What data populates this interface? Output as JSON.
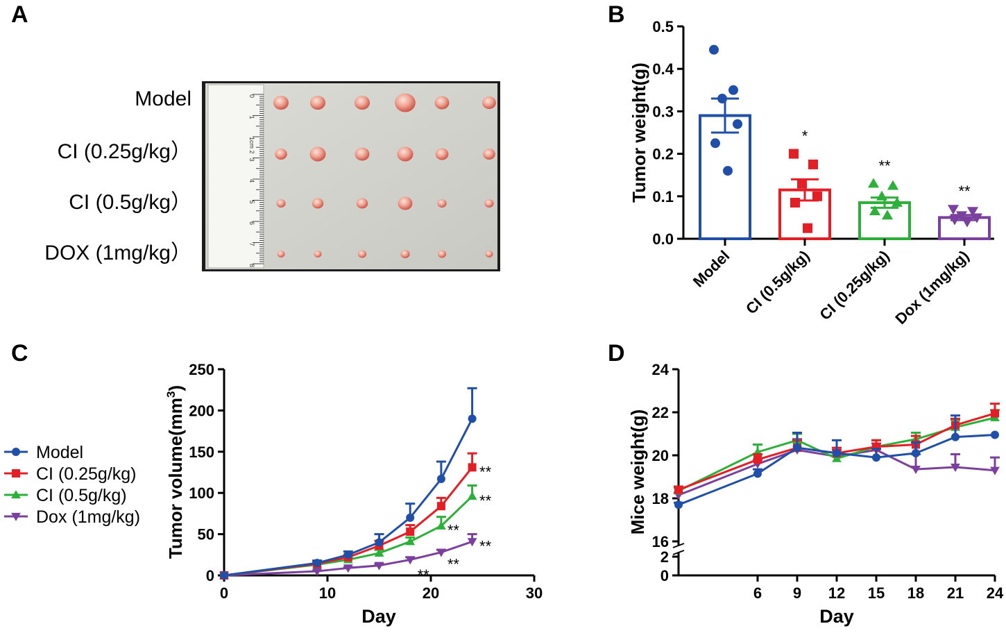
{
  "panels": {
    "a": {
      "letter": "A"
    },
    "b": {
      "letter": "B"
    },
    "c": {
      "letter": "C"
    },
    "d": {
      "letter": "D"
    }
  },
  "colors": {
    "model": "#1f4fa8",
    "ci025": "#e31e24",
    "ci05": "#2db039",
    "dox": "#7b3f9e",
    "axis": "#000000"
  },
  "photo": {
    "row_labels": [
      "Model",
      "CI (0.25g/kg）",
      "CI (0.5g/kg）",
      "DOX (1mg/kg）"
    ],
    "ruler_ticks": [
      "0",
      "1",
      "1cm 2",
      "3",
      "4",
      "5",
      "6",
      "7",
      "8"
    ],
    "tumor_sizes": [
      [
        1.0,
        1.0,
        1.0,
        1.35,
        0.95,
        0.9
      ],
      [
        0.8,
        1.05,
        0.95,
        1.05,
        0.85,
        0.8
      ],
      [
        0.6,
        0.75,
        0.75,
        0.95,
        0.6,
        0.6
      ],
      [
        0.5,
        0.5,
        0.55,
        0.6,
        0.55,
        0.5
      ]
    ]
  },
  "chart_data": [
    {
      "panel": "B",
      "type": "bar",
      "title": "",
      "xlabel": "",
      "ylabel": "Tumor weight(g)",
      "ylim": [
        0,
        0.5
      ],
      "yticks": [
        "0.0",
        "0.1",
        "0.2",
        "0.3",
        "0.4",
        "0.5"
      ],
      "categories": [
        "Model",
        "CI (0.5g/kg)",
        "CI (0.25g/kg)",
        "Dox (1mg/kg)"
      ],
      "values": [
        0.29,
        0.115,
        0.085,
        0.05
      ],
      "sem": [
        0.04,
        0.025,
        0.012,
        0.006
      ],
      "significance": [
        "",
        "*",
        "**",
        "**"
      ],
      "points": [
        [
          0.445,
          0.35,
          0.33,
          0.27,
          0.225,
          0.16
        ],
        [
          0.2,
          0.175,
          0.13,
          0.1,
          0.085,
          0.025
        ],
        [
          0.13,
          0.125,
          0.1,
          0.085,
          0.065,
          0.055
        ],
        [
          0.07,
          0.065,
          0.055,
          0.05,
          0.045,
          0.04
        ]
      ],
      "markers": [
        "circle",
        "square",
        "triangle-up",
        "triangle-down"
      ]
    },
    {
      "panel": "C",
      "type": "line",
      "xlabel": "Day",
      "ylabel": "Tumor volume(mm",
      "ylabel_sup": "3",
      "ylabel_end": ")",
      "xlim": [
        0,
        30
      ],
      "ylim": [
        0,
        250
      ],
      "xticks": [
        "0",
        "10",
        "20",
        "30"
      ],
      "yticks": [
        "0",
        "50",
        "100",
        "150",
        "200",
        "250"
      ],
      "x": [
        0,
        9,
        12,
        15,
        18,
        21,
        24
      ],
      "series": [
        {
          "name": "Model",
          "marker": "circle",
          "values": [
            0,
            15,
            25,
            40,
            70,
            117,
            190
          ],
          "sem": [
            0,
            3,
            4,
            10,
            17,
            21,
            37
          ]
        },
        {
          "name": "CI (0.25g/kg)",
          "marker": "square",
          "values": [
            0,
            14,
            22,
            36,
            53,
            84,
            131
          ],
          "sem": [
            0,
            2,
            3,
            6,
            8,
            10,
            17
          ]
        },
        {
          "name": "CI (0.5g/kg)",
          "marker": "triangle-up",
          "values": [
            0,
            13,
            19,
            27,
            41,
            60,
            96
          ],
          "sem": [
            0,
            2,
            2,
            4,
            5,
            11,
            13
          ]
        },
        {
          "name": "Dox (1mg/kg)",
          "marker": "triangle-down",
          "values": [
            0,
            5,
            9,
            12,
            19,
            28,
            41
          ],
          "sem": [
            0,
            1,
            1,
            2,
            3,
            3,
            9
          ]
        }
      ],
      "annotations": [
        {
          "text": "**",
          "x": 24.7,
          "y": 131
        },
        {
          "text": "**",
          "x": 24.7,
          "y": 96
        },
        {
          "text": "**",
          "x": 24.7,
          "y": 41
        },
        {
          "text": "**",
          "x": 21.6,
          "y": 60
        },
        {
          "text": "**",
          "x": 21.6,
          "y": 19
        },
        {
          "text": "**",
          "x": 18.7,
          "y": 6
        }
      ],
      "legend": {
        "position": "left"
      }
    },
    {
      "panel": "D",
      "type": "line",
      "xlabel": "Day",
      "ylabel": "Mice weight(g)",
      "ylim_broken": [
        [
          0,
          2
        ],
        [
          16,
          24
        ]
      ],
      "xticks": [
        "6",
        "9",
        "12",
        "15",
        "18",
        "21",
        "24"
      ],
      "yticks_upper": [
        "16",
        "18",
        "20",
        "22",
        "24"
      ],
      "yticks_lower": [
        "0",
        "2"
      ],
      "x": [
        0,
        6,
        9,
        12,
        15,
        18,
        21,
        24
      ],
      "series": [
        {
          "name": "Model",
          "marker": "circle",
          "values": [
            17.7,
            19.15,
            20.35,
            20.1,
            19.9,
            20.1,
            20.85,
            20.95
          ],
          "sem": [
            0.1,
            0.2,
            0.7,
            0.6,
            0.4,
            0.5,
            1.0,
            0
          ]
        },
        {
          "name": "CI (0.25g/kg)",
          "marker": "square",
          "values": [
            18.4,
            19.8,
            20.35,
            20.1,
            20.4,
            20.5,
            21.4,
            21.95
          ],
          "sem": [
            0.15,
            0.25,
            0.35,
            0.25,
            0.3,
            0.4,
            0.3,
            0.45
          ]
        },
        {
          "name": "CI (0.5g/kg)",
          "marker": "triangle-up",
          "values": [
            18.35,
            20.15,
            20.7,
            19.85,
            20.4,
            20.75,
            21.3,
            21.75
          ],
          "sem": [
            0.15,
            0.35,
            0.3,
            0.15,
            0.3,
            0.3,
            0.35,
            0.35
          ]
        },
        {
          "name": "Dox (1mg/kg)",
          "marker": "triangle-down",
          "values": [
            18.15,
            19.6,
            20.25,
            19.95,
            20.25,
            19.35,
            19.45,
            19.3
          ],
          "sem": [
            0.1,
            0.2,
            0.5,
            0.3,
            0.3,
            0.7,
            0.6,
            0.6
          ]
        }
      ]
    }
  ]
}
